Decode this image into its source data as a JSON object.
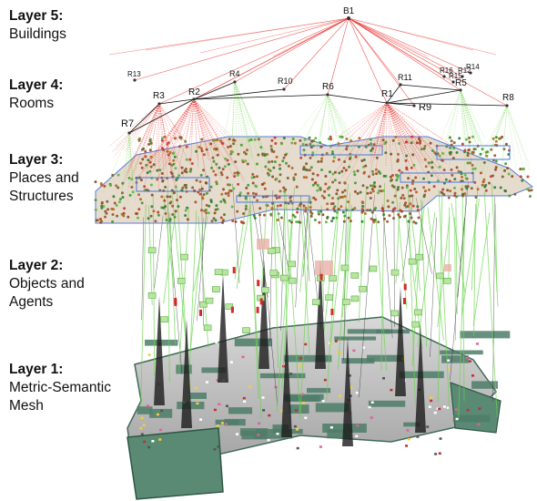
{
  "layers": [
    {
      "title": "Layer 5:",
      "subtitle": [
        "Buildings"
      ]
    },
    {
      "title": "Layer 4:",
      "subtitle": [
        "Rooms"
      ]
    },
    {
      "title": "Layer 3:",
      "subtitle": [
        "Places and",
        "Structures"
      ]
    },
    {
      "title": "Layer 2:",
      "subtitle": [
        "Objects and",
        "Agents"
      ]
    },
    {
      "title": "Layer 1:",
      "subtitle": [
        "Metric-Semantic",
        "Mesh"
      ]
    }
  ],
  "building": {
    "label": "B1"
  },
  "rooms": [
    {
      "label": "R1"
    },
    {
      "label": "R2"
    },
    {
      "label": "R3"
    },
    {
      "label": "R4"
    },
    {
      "label": "R5"
    },
    {
      "label": "R6"
    },
    {
      "label": "R7"
    },
    {
      "label": "R8"
    },
    {
      "label": "R9"
    },
    {
      "label": "R10"
    },
    {
      "label": "R11"
    },
    {
      "label": "R12"
    },
    {
      "label": "R13"
    },
    {
      "label": "R14"
    },
    {
      "label": "R15"
    },
    {
      "label": "R16"
    }
  ],
  "colors": {
    "building_edge": "#e8302a",
    "room_edge_green": "#7ddc5a",
    "room_edge_red": "#e8302a",
    "room_edge_black": "#111111",
    "places_brown": "#8a4a1e",
    "places_green": "#3f9a2e",
    "mesh_wall": "#4d7c68",
    "mesh_floor": "#c9c9c9"
  }
}
